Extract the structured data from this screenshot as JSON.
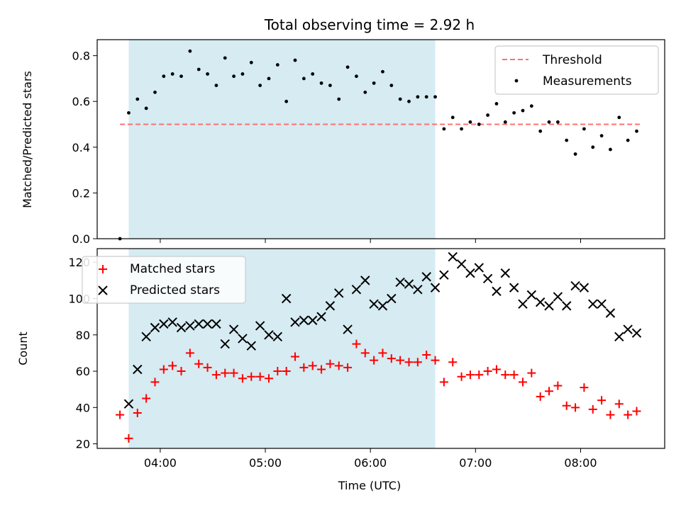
{
  "chart_data": [
    {
      "type": "scatter",
      "title": "Total observing time = 2.92 h",
      "xlabel": "",
      "ylabel": "Matched/Predicted stars",
      "xlim": [
        "03:24",
        "08:48"
      ],
      "ylim": [
        0,
        0.87
      ],
      "yticks": [
        0.0,
        0.2,
        0.4,
        0.6,
        0.8
      ],
      "ytick_labels": [
        "0.0",
        "0.2",
        "0.4",
        "0.6",
        "0.8"
      ],
      "xticks": [
        "04:00",
        "05:00",
        "06:00",
        "07:00",
        "08:00"
      ],
      "xtick_labels_shown": false,
      "shaded_interval": {
        "start": "03:42",
        "end": "06:37",
        "color": "#add8e6"
      },
      "legend": {
        "placement": "top-right",
        "entries": [
          "Threshold",
          "Measurements"
        ]
      },
      "series": [
        {
          "name": "Threshold",
          "style": "dashed-line",
          "color": "#ff7070",
          "x": [
            "03:37",
            "08:35"
          ],
          "y": [
            0.5,
            0.5
          ]
        },
        {
          "name": "Measurements",
          "style": "dot",
          "color": "#000000",
          "x": [
            "03:37",
            "03:42",
            "03:47",
            "03:52",
            "03:57",
            "04:02",
            "04:07",
            "04:12",
            "04:17",
            "04:22",
            "04:27",
            "04:32",
            "04:37",
            "04:42",
            "04:47",
            "04:52",
            "04:57",
            "05:02",
            "05:07",
            "05:12",
            "05:17",
            "05:22",
            "05:27",
            "05:32",
            "05:37",
            "05:42",
            "05:47",
            "05:52",
            "05:57",
            "06:02",
            "06:07",
            "06:12",
            "06:17",
            "06:22",
            "06:27",
            "06:32",
            "06:37",
            "06:42",
            "06:47",
            "06:52",
            "06:57",
            "07:02",
            "07:07",
            "07:12",
            "07:17",
            "07:22",
            "07:27",
            "07:32",
            "07:37",
            "07:42",
            "07:47",
            "07:52",
            "07:57",
            "08:02",
            "08:07",
            "08:12",
            "08:17",
            "08:22",
            "08:27",
            "08:32"
          ],
          "y": [
            0.0,
            0.55,
            0.61,
            0.57,
            0.64,
            0.71,
            0.72,
            0.71,
            0.82,
            0.74,
            0.72,
            0.67,
            0.79,
            0.71,
            0.72,
            0.77,
            0.67,
            0.7,
            0.76,
            0.6,
            0.78,
            0.7,
            0.72,
            0.68,
            0.67,
            0.61,
            0.75,
            0.71,
            0.64,
            0.68,
            0.73,
            0.67,
            0.61,
            0.6,
            0.62,
            0.62,
            0.62,
            0.48,
            0.53,
            0.48,
            0.51,
            0.5,
            0.54,
            0.59,
            0.51,
            0.55,
            0.56,
            0.58,
            0.47,
            0.51,
            0.51,
            0.43,
            0.37,
            0.48,
            0.4,
            0.45,
            0.39,
            0.53,
            0.43,
            0.47
          ]
        }
      ]
    },
    {
      "type": "scatter",
      "title": "",
      "xlabel": "Time (UTC)",
      "ylabel": "Count",
      "xlim": [
        "03:24",
        "08:48"
      ],
      "ylim": [
        17.5,
        127.5
      ],
      "yticks": [
        20,
        40,
        60,
        80,
        100,
        120
      ],
      "ytick_labels": [
        "20",
        "40",
        "60",
        "80",
        "100",
        "120"
      ],
      "xticks": [
        "04:00",
        "05:00",
        "06:00",
        "07:00",
        "08:00"
      ],
      "xtick_labels": [
        "04:00",
        "05:00",
        "06:00",
        "07:00",
        "08:00"
      ],
      "shaded_interval": {
        "start": "03:42",
        "end": "06:37",
        "color": "#add8e6"
      },
      "legend": {
        "placement": "top-left",
        "entries": [
          "Matched stars",
          "Predicted stars"
        ]
      },
      "series": [
        {
          "name": "Matched stars",
          "marker": "+",
          "color": "#ff0000",
          "x": [
            "03:37",
            "03:42",
            "03:47",
            "03:52",
            "03:57",
            "04:02",
            "04:07",
            "04:12",
            "04:17",
            "04:22",
            "04:27",
            "04:32",
            "04:37",
            "04:42",
            "04:47",
            "04:52",
            "04:57",
            "05:02",
            "05:07",
            "05:12",
            "05:17",
            "05:22",
            "05:27",
            "05:32",
            "05:37",
            "05:42",
            "05:47",
            "05:52",
            "05:57",
            "06:02",
            "06:07",
            "06:12",
            "06:17",
            "06:22",
            "06:27",
            "06:32",
            "06:37",
            "06:42",
            "06:47",
            "06:52",
            "06:57",
            "07:02",
            "07:07",
            "07:12",
            "07:17",
            "07:22",
            "07:27",
            "07:32",
            "07:37",
            "07:42",
            "07:47",
            "07:52",
            "07:57",
            "08:02",
            "08:07",
            "08:12",
            "08:17",
            "08:22",
            "08:27",
            "08:32"
          ],
          "y": [
            36,
            23,
            37,
            45,
            54,
            61,
            63,
            60,
            70,
            64,
            62,
            58,
            59,
            59,
            56,
            57,
            57,
            56,
            60,
            60,
            68,
            62,
            63,
            61,
            64,
            63,
            62,
            75,
            70,
            66,
            70,
            67,
            66,
            65,
            65,
            69,
            66,
            54,
            65,
            57,
            58,
            58,
            60,
            61,
            58,
            58,
            54,
            59,
            46,
            49,
            52,
            41,
            40,
            51,
            39,
            44,
            36,
            42,
            36,
            38
          ]
        },
        {
          "name": "Predicted stars",
          "marker": "x",
          "color": "#000000",
          "x": [
            "03:42",
            "03:47",
            "03:52",
            "03:57",
            "04:02",
            "04:07",
            "04:12",
            "04:17",
            "04:22",
            "04:27",
            "04:32",
            "04:37",
            "04:42",
            "04:47",
            "04:52",
            "04:57",
            "05:02",
            "05:07",
            "05:12",
            "05:17",
            "05:22",
            "05:27",
            "05:32",
            "05:37",
            "05:42",
            "05:47",
            "05:52",
            "05:57",
            "06:02",
            "06:07",
            "06:12",
            "06:17",
            "06:22",
            "06:27",
            "06:32",
            "06:37",
            "06:42",
            "06:47",
            "06:52",
            "06:57",
            "07:02",
            "07:07",
            "07:12",
            "07:17",
            "07:22",
            "07:27",
            "07:32",
            "07:37",
            "07:42",
            "07:47",
            "07:52",
            "07:57",
            "08:02",
            "08:07",
            "08:12",
            "08:17",
            "08:22",
            "08:27",
            "08:32"
          ],
          "y": [
            42,
            61,
            79,
            84,
            86,
            87,
            84,
            85,
            86,
            86,
            86,
            75,
            83,
            78,
            74,
            85,
            80,
            79,
            100,
            87,
            88,
            88,
            90,
            96,
            103,
            83,
            105,
            110,
            97,
            96,
            100,
            109,
            108,
            105,
            112,
            106,
            113,
            123,
            119,
            114,
            117,
            111,
            104,
            114,
            106,
            97,
            102,
            98,
            96,
            101,
            96,
            107,
            106,
            97,
            97,
            92,
            79,
            83,
            81
          ]
        }
      ]
    }
  ]
}
